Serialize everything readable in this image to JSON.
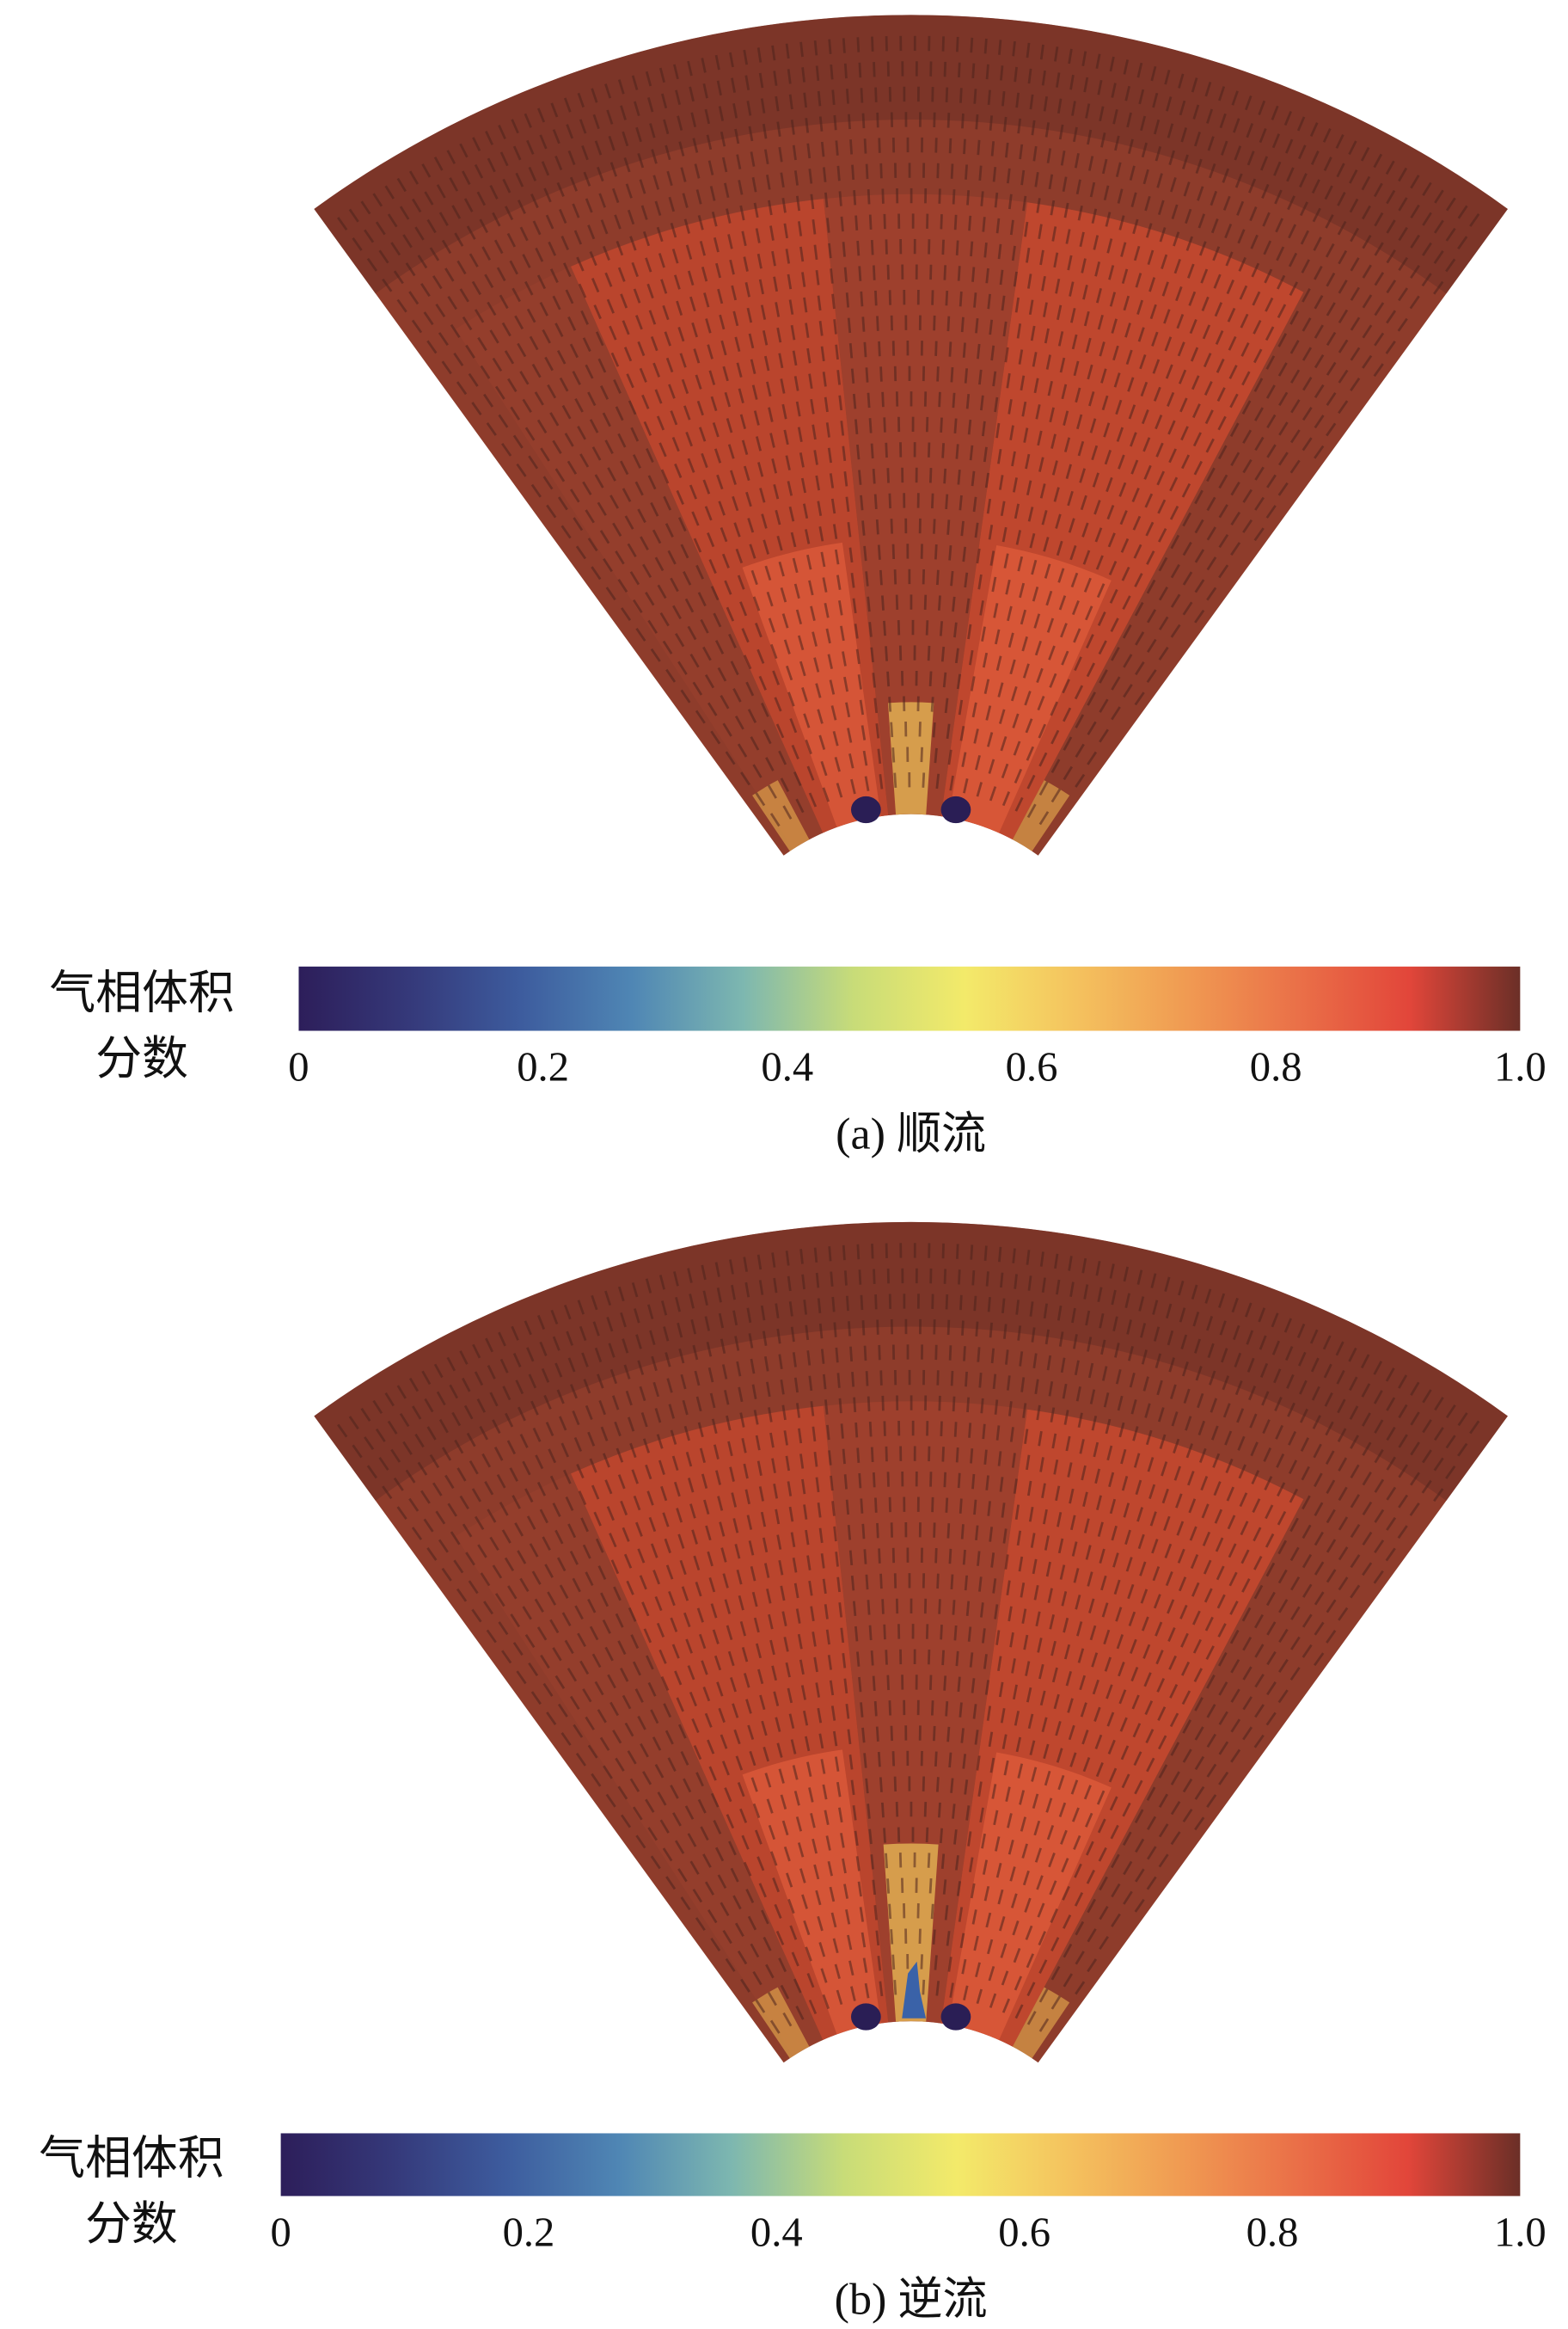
{
  "panels": [
    {
      "caption": "(a) 顺流",
      "colorbar": {
        "label": [
          "气相体积",
          "分数"
        ],
        "lim": [
          0,
          1
        ],
        "ticks": [
          0,
          0.2,
          0.4,
          0.6,
          0.8,
          {
            "value": 1,
            "label": "1.0"
          }
        ],
        "colormap": [
          "#2d1e5a",
          "#35397a",
          "#3d5c9e",
          "#4f86b4",
          "#7db7b0",
          "#c8dc78",
          "#f3ea6a",
          "#f4c25e",
          "#f09a52",
          "#ea7048",
          "#e2463a",
          "#6b2f27"
        ]
      }
    },
    {
      "caption": "(b) 逆流",
      "colorbar": {
        "label": [
          "气相体积",
          "分数"
        ],
        "lim": [
          0,
          1
        ],
        "ticks": [
          0,
          0.2,
          0.4,
          0.6,
          0.8,
          {
            "value": 1,
            "label": "1.0"
          }
        ],
        "colormap": [
          "#2d1e5a",
          "#35397a",
          "#3d5c9e",
          "#4f86b4",
          "#7db7b0",
          "#c8dc78",
          "#f3ea6a",
          "#f4c25e",
          "#f09a52",
          "#ea7048",
          "#e2463a",
          "#6b2f27"
        ]
      }
    }
  ]
}
